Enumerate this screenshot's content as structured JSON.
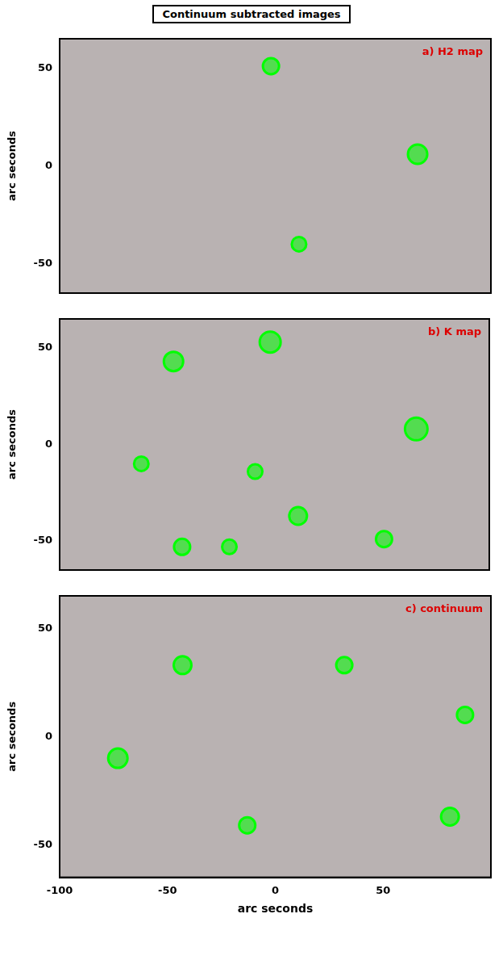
{
  "title": "Continuum subtracted images",
  "chart_data": [
    {
      "type": "bubble",
      "label": "a) H2 map",
      "color": "#00ff00",
      "xlim": [
        -100,
        100
      ],
      "xticks": [
        -100,
        -50,
        0,
        50
      ],
      "ylim": [
        -65,
        65
      ],
      "yticks": [
        -50,
        0,
        50
      ],
      "y_label": "arc seconds",
      "tick_labels": "y",
      "points": [
        {
          "x": -2,
          "y": 51,
          "size": 10
        },
        {
          "x": 66,
          "y": 6,
          "size": 12
        },
        {
          "x": 11,
          "y": -40,
          "size": 9
        }
      ]
    },
    {
      "type": "bubble",
      "label": "b) K map",
      "color": "#00ff00",
      "xlim": [
        -100,
        100
      ],
      "xticks": [
        -100,
        -50,
        0,
        50
      ],
      "ylim": [
        -65,
        65
      ],
      "yticks": [
        -50,
        0,
        50
      ],
      "y_label": "arc seconds",
      "tick_labels": "y",
      "points": [
        {
          "x": -2,
          "y": 53,
          "size": 13
        },
        {
          "x": 66,
          "y": 8,
          "size": 14
        },
        {
          "x": 11,
          "y": -37,
          "size": 11
        },
        {
          "x": -47,
          "y": 43,
          "size": 12
        },
        {
          "x": -43,
          "y": -53,
          "size": 10
        },
        {
          "x": -21,
          "y": -53,
          "size": 9
        },
        {
          "x": 51,
          "y": -49,
          "size": 10
        },
        {
          "x": -62,
          "y": -10,
          "size": 9
        },
        {
          "x": -9,
          "y": -14,
          "size": 9
        }
      ]
    },
    {
      "type": "bubble",
      "label": "c) continuum",
      "color": "#00ff00",
      "xlim": [
        -100,
        100
      ],
      "xticks": [
        -100,
        -50,
        0,
        50
      ],
      "ylim": [
        -65,
        65
      ],
      "yticks": [
        -50,
        0,
        50
      ],
      "x_label": "arc seconds",
      "y_label": "arc seconds",
      "tick_labels": true,
      "points": [
        {
          "x": -73,
          "y": -10,
          "size": 12
        },
        {
          "x": 81,
          "y": -37,
          "size": 11
        },
        {
          "x": 88,
          "y": 10,
          "size": 10
        },
        {
          "x": -13,
          "y": -41,
          "size": 10
        },
        {
          "x": 32,
          "y": 33,
          "size": 10
        },
        {
          "x": -43,
          "y": 33,
          "size": 11
        }
      ]
    }
  ]
}
